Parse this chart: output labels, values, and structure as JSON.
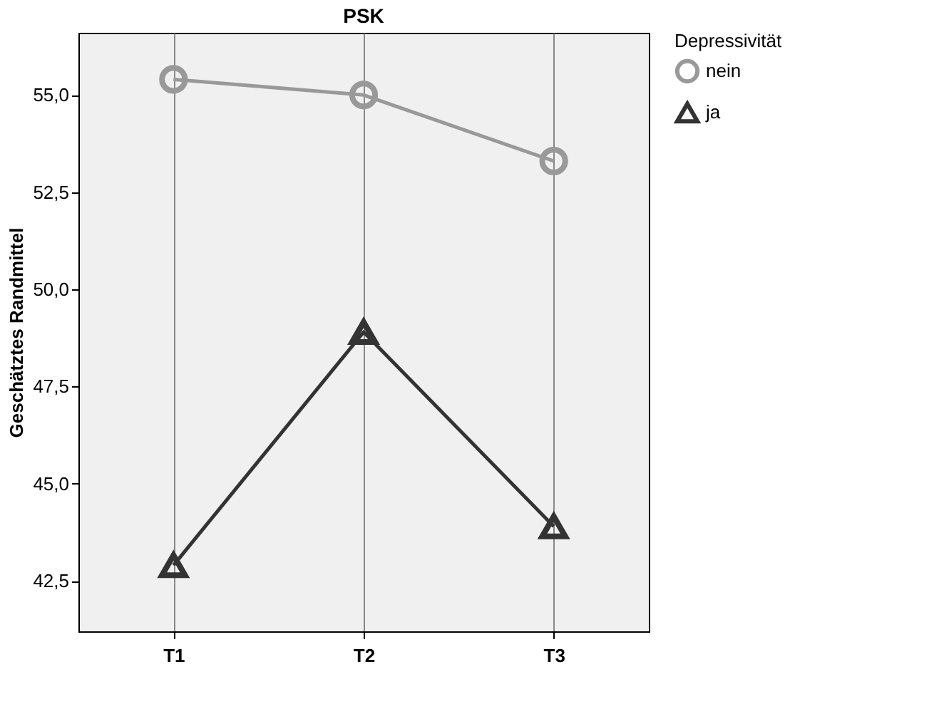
{
  "chart_data": {
    "type": "line",
    "title": "PSK",
    "ylabel": "Geschätztes Randmittel",
    "legend_title": "Depressivität",
    "legend": "top right",
    "grid": "x",
    "categories": [
      "T1",
      "T2",
      "T3"
    ],
    "series": [
      {
        "name": "nein",
        "color": "#999999",
        "marker": "circle",
        "values": [
          55.4,
          55.0,
          53.3
        ]
      },
      {
        "name": "ja",
        "color": "#333333",
        "marker": "triangle",
        "values": [
          42.9,
          48.9,
          43.9
        ]
      }
    ],
    "ylim": [
      41.2,
      56.6
    ],
    "yticks": [
      {
        "value": 42.5,
        "label": "42,5"
      },
      {
        "value": 45,
        "label": "45,0"
      },
      {
        "value": 47.5,
        "label": "47,5"
      },
      {
        "value": 50,
        "label": "50,0"
      },
      {
        "value": 52.5,
        "label": "52,5"
      },
      {
        "value": 55,
        "label": "55,0"
      }
    ]
  }
}
